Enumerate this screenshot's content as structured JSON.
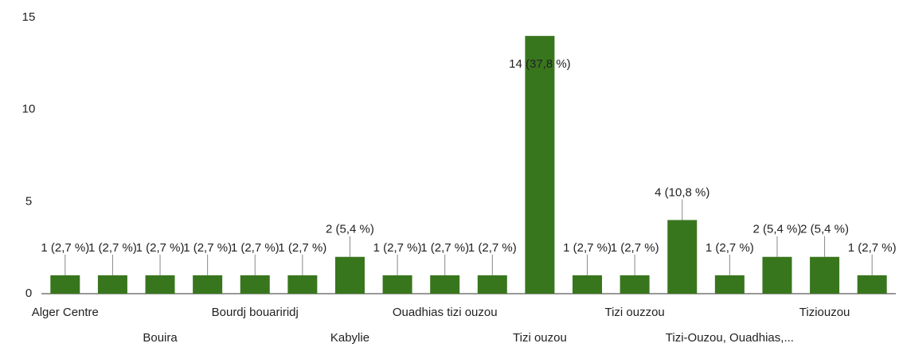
{
  "chart_data": {
    "type": "bar",
    "categories": [
      "Alger Centre",
      null,
      "Bouira",
      null,
      "Bourdj bouariridj",
      null,
      "Kabylie",
      null,
      "Ouadhias tizi ouzou",
      null,
      "Tizi ouzou",
      null,
      "Tizi ouzzou",
      null,
      "Tizi-Ouzou, Ouadhias,...",
      null,
      "Tiziouzou",
      null
    ],
    "values": [
      1,
      1,
      1,
      1,
      1,
      1,
      2,
      1,
      1,
      1,
      14,
      1,
      1,
      4,
      1,
      2,
      2,
      1
    ],
    "value_labels": [
      "1 (2,7 %)",
      "1 (2,7 %)",
      "1 (2,7 %)",
      "1 (2,7 %)",
      "1 (2,7 %)",
      "1 (2,7 %)",
      "2 (5,4 %)",
      "1 (2,7 %)",
      "1 (2,7 %)",
      "1 (2,7 %)",
      "14 (37,8 %)",
      "1 (2,7 %)",
      "1 (2,7 %)",
      "4 (10,8 %)",
      "1 (2,7 %)",
      "2 (5,4 %)",
      "2 (5,4 %)",
      "1 (2,7 %)"
    ],
    "color": "#38761d",
    "ylim": [
      0,
      15
    ],
    "yticks": [
      0,
      5,
      10,
      15
    ],
    "grid": false
  }
}
